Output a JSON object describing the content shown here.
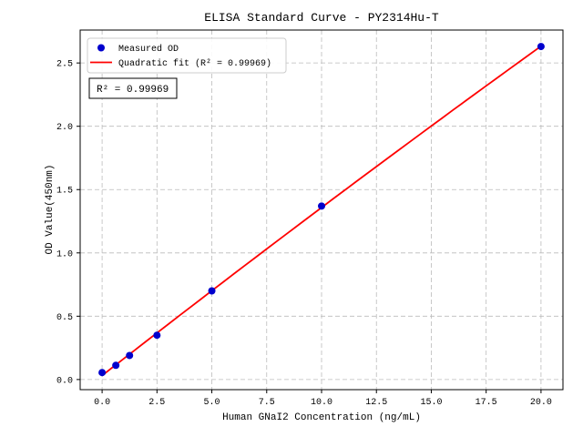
{
  "figure": {
    "background": "#ffffff"
  },
  "chart_data": {
    "type": "scatter",
    "title": "ELISA Standard Curve - PY2314Hu-T",
    "xlabel": "Human GNaI2 Concentration (ng/mL)",
    "ylabel": "OD Value(450nm)",
    "xlim": [
      -1,
      21
    ],
    "ylim": [
      -0.08,
      2.76
    ],
    "x_ticks": [
      0.0,
      2.5,
      5.0,
      7.5,
      10.0,
      12.5,
      15.0,
      17.5,
      20.0
    ],
    "y_ticks": [
      0.0,
      0.5,
      1.0,
      1.5,
      2.0,
      2.5
    ],
    "grid": "dashed",
    "legend_position": "upper left",
    "series": [
      {
        "name": "Measured OD",
        "type": "scatter",
        "color": "#0000cd",
        "x": [
          0,
          0.625,
          1.25,
          2.5,
          5,
          10,
          20
        ],
        "y": [
          0.055,
          0.112,
          0.19,
          0.35,
          0.7,
          1.37,
          2.63
        ]
      },
      {
        "name": "Quadratic fit (R² = 0.99969)",
        "type": "line",
        "color": "#ff0000",
        "fit": "quadratic",
        "x_range": [
          0,
          20
        ]
      }
    ],
    "annotation": "R² = 0.99969",
    "r_squared": 0.99969
  }
}
